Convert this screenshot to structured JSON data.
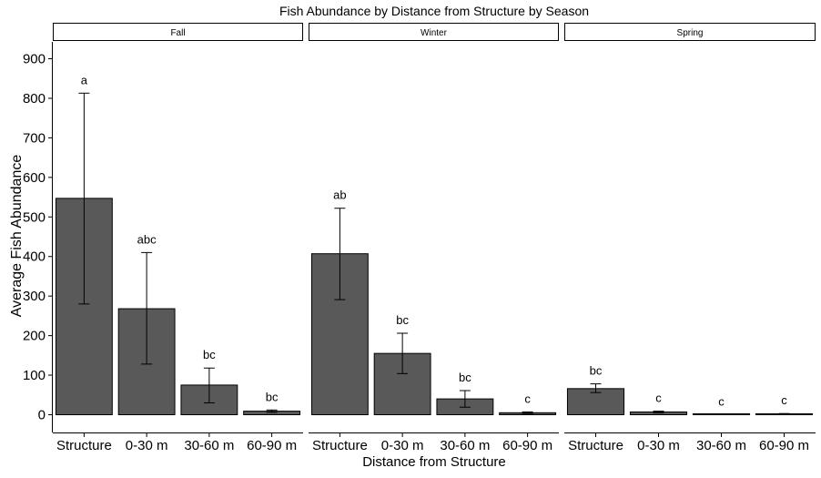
{
  "chart_data": {
    "type": "bar",
    "title": "Fish Abundance by Distance from Structure by Season",
    "xlabel": "Distance from Structure",
    "ylabel": "Average Fish Abundance",
    "ylim": [
      0,
      950
    ],
    "yticks": [
      "0",
      "100",
      "200",
      "300",
      "400",
      "500",
      "600",
      "700",
      "800",
      "900"
    ],
    "categories": [
      "Structure",
      "0-30 m",
      "30-60 m",
      "60-90 m"
    ],
    "grid": false,
    "bar_color": "#595959",
    "panels": [
      {
        "name": "Fall",
        "values": [
          547,
          268,
          75,
          9
        ],
        "error_low": [
          280,
          128,
          30,
          6
        ],
        "error_high": [
          813,
          410,
          118,
          12
        ],
        "labels": [
          "a",
          "abc",
          "bc",
          "bc"
        ]
      },
      {
        "name": "Winter",
        "values": [
          407,
          155,
          40,
          5
        ],
        "error_low": [
          291,
          104,
          19,
          3
        ],
        "error_high": [
          522,
          206,
          61,
          7
        ],
        "labels": [
          "ab",
          "bc",
          "bc",
          "c"
        ]
      },
      {
        "name": "Spring",
        "values": [
          66,
          7,
          0,
          2
        ],
        "error_low": [
          56,
          5,
          0,
          1
        ],
        "error_high": [
          78,
          9,
          0,
          3
        ],
        "labels": [
          "bc",
          "c",
          "c",
          "c"
        ]
      }
    ]
  }
}
